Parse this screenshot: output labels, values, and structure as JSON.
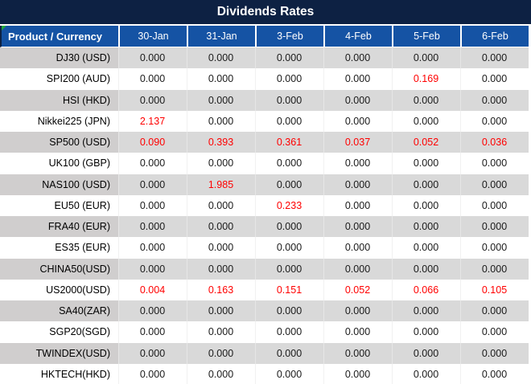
{
  "title": "Dividends Rates",
  "table": {
    "corner_header": "Product / Currency",
    "date_headers": [
      "30-Jan",
      "31-Jan",
      "3-Feb",
      "4-Feb",
      "5-Feb",
      "6-Feb"
    ],
    "rows": [
      {
        "product": "DJ30 (USD)",
        "values": [
          "0.000",
          "0.000",
          "0.000",
          "0.000",
          "0.000",
          "0.000"
        ],
        "red": [
          false,
          false,
          false,
          false,
          false,
          false
        ]
      },
      {
        "product": "SPI200 (AUD)",
        "values": [
          "0.000",
          "0.000",
          "0.000",
          "0.000",
          "0.169",
          "0.000"
        ],
        "red": [
          false,
          false,
          false,
          false,
          true,
          false
        ]
      },
      {
        "product": "HSI (HKD)",
        "values": [
          "0.000",
          "0.000",
          "0.000",
          "0.000",
          "0.000",
          "0.000"
        ],
        "red": [
          false,
          false,
          false,
          false,
          false,
          false
        ]
      },
      {
        "product": "Nikkei225 (JPN)",
        "values": [
          "2.137",
          "0.000",
          "0.000",
          "0.000",
          "0.000",
          "0.000"
        ],
        "red": [
          true,
          false,
          false,
          false,
          false,
          false
        ]
      },
      {
        "product": "SP500 (USD)",
        "values": [
          "0.090",
          "0.393",
          "0.361",
          "0.037",
          "0.052",
          "0.036"
        ],
        "red": [
          true,
          true,
          true,
          true,
          true,
          true
        ]
      },
      {
        "product": "UK100 (GBP)",
        "values": [
          "0.000",
          "0.000",
          "0.000",
          "0.000",
          "0.000",
          "0.000"
        ],
        "red": [
          false,
          false,
          false,
          false,
          false,
          false
        ]
      },
      {
        "product": "NAS100 (USD)",
        "values": [
          "0.000",
          "1.985",
          "0.000",
          "0.000",
          "0.000",
          "0.000"
        ],
        "red": [
          false,
          true,
          false,
          false,
          false,
          false
        ]
      },
      {
        "product": "EU50 (EUR)",
        "values": [
          "0.000",
          "0.000",
          "0.233",
          "0.000",
          "0.000",
          "0.000"
        ],
        "red": [
          false,
          false,
          true,
          false,
          false,
          false
        ]
      },
      {
        "product": "FRA40 (EUR)",
        "values": [
          "0.000",
          "0.000",
          "0.000",
          "0.000",
          "0.000",
          "0.000"
        ],
        "red": [
          false,
          false,
          false,
          false,
          false,
          false
        ]
      },
      {
        "product": "ES35 (EUR)",
        "values": [
          "0.000",
          "0.000",
          "0.000",
          "0.000",
          "0.000",
          "0.000"
        ],
        "red": [
          false,
          false,
          false,
          false,
          false,
          false
        ]
      },
      {
        "product": "CHINA50(USD)",
        "values": [
          "0.000",
          "0.000",
          "0.000",
          "0.000",
          "0.000",
          "0.000"
        ],
        "red": [
          false,
          false,
          false,
          false,
          false,
          false
        ]
      },
      {
        "product": "US2000(USD)",
        "values": [
          "0.004",
          "0.163",
          "0.151",
          "0.052",
          "0.066",
          "0.105"
        ],
        "red": [
          true,
          true,
          true,
          true,
          true,
          true
        ]
      },
      {
        "product": "SA40(ZAR)",
        "values": [
          "0.000",
          "0.000",
          "0.000",
          "0.000",
          "0.000",
          "0.000"
        ],
        "red": [
          false,
          false,
          false,
          false,
          false,
          false
        ]
      },
      {
        "product": "SGP20(SGD)",
        "values": [
          "0.000",
          "0.000",
          "0.000",
          "0.000",
          "0.000",
          "0.000"
        ],
        "red": [
          false,
          false,
          false,
          false,
          false,
          false
        ]
      },
      {
        "product": "TWINDEX(USD)",
        "values": [
          "0.000",
          "0.000",
          "0.000",
          "0.000",
          "0.000",
          "0.000"
        ],
        "red": [
          false,
          false,
          false,
          false,
          false,
          false
        ]
      },
      {
        "product": "HKTECH(HKD)",
        "values": [
          "0.000",
          "0.000",
          "0.000",
          "0.000",
          "0.000",
          "0.000"
        ],
        "red": [
          false,
          false,
          false,
          false,
          false,
          false
        ]
      }
    ]
  },
  "colors": {
    "title_bg": "#0d2143",
    "header_bg": "#1553a4",
    "header_text": "#ffffff",
    "row_gray": "#d9d9d9",
    "label_gray": "#d0cece",
    "value_text": "#1a1a1a",
    "red_value": "#ff0000",
    "marker_green": "#21a63c"
  }
}
